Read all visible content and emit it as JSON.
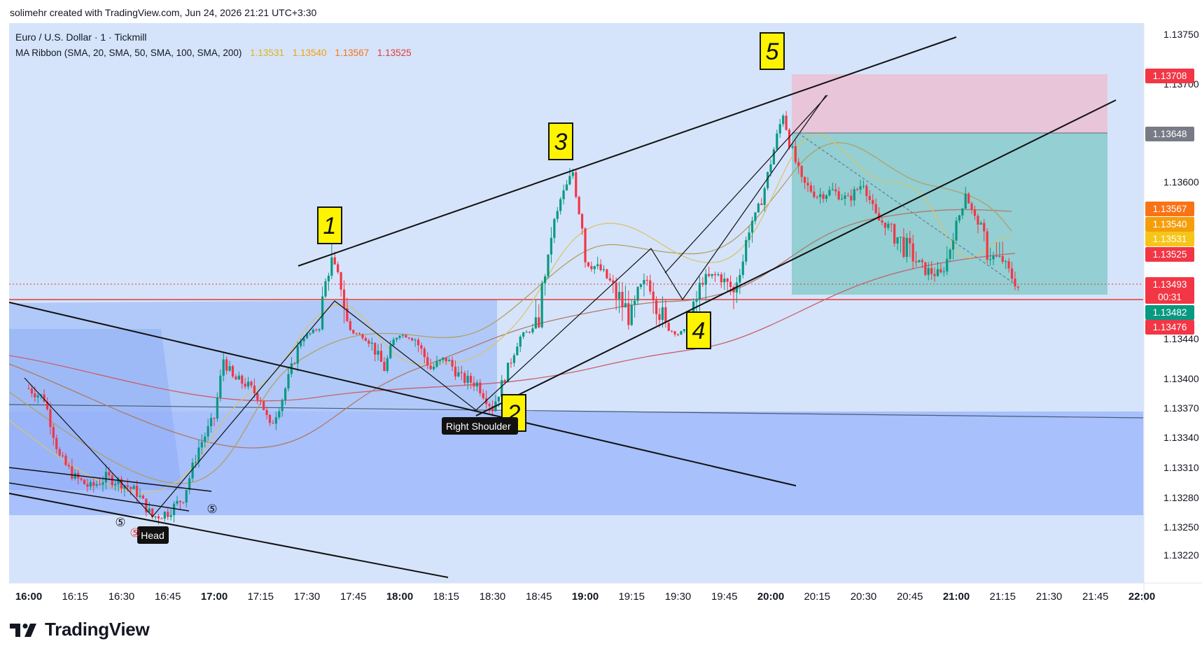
{
  "header": {
    "caption": "solimehr created with TradingView.com, Jun 24, 2026 21:21 UTC+3:30"
  },
  "legend": {
    "symbol": "Euro / U.S. Dollar · 1 · Tickmill",
    "indicator": "MA Ribbon (SMA, 20, SMA, 50, SMA, 100, SMA, 200)",
    "values": [
      {
        "text": "1.13531",
        "color": "#f5c518"
      },
      {
        "text": "1.13540",
        "color": "#f59e0b"
      },
      {
        "text": "1.13567",
        "color": "#f97316"
      },
      {
        "text": "1.13525",
        "color": "#e53935"
      }
    ]
  },
  "brand": {
    "name": "TradingView"
  },
  "chart_data": {
    "type": "candlestick",
    "instrument": "EURUSD",
    "timeframe": "1",
    "y_axis": {
      "range": [
        1.132,
        1.1377
      ],
      "ticks": [
        "1.13220",
        "1.13250",
        "1.13280",
        "1.13310",
        "1.13340",
        "1.13370",
        "1.13400",
        "1.13440",
        "1.13600",
        "1.13700",
        "1.13750"
      ]
    },
    "x_axis": {
      "range": [
        "16:00",
        "22:00"
      ],
      "ticks": [
        {
          "label": "16:00",
          "bold": true
        },
        {
          "label": "16:15"
        },
        {
          "label": "16:30"
        },
        {
          "label": "16:45"
        },
        {
          "label": "17:00",
          "bold": true
        },
        {
          "label": "17:15"
        },
        {
          "label": "17:30"
        },
        {
          "label": "17:45"
        },
        {
          "label": "18:00",
          "bold": true
        },
        {
          "label": "18:15"
        },
        {
          "label": "18:30"
        },
        {
          "label": "18:45"
        },
        {
          "label": "19:00",
          "bold": true
        },
        {
          "label": "19:15"
        },
        {
          "label": "19:30"
        },
        {
          "label": "19:45"
        },
        {
          "label": "20:00",
          "bold": true
        },
        {
          "label": "20:15"
        },
        {
          "label": "20:30"
        },
        {
          "label": "20:45"
        },
        {
          "label": "21:00",
          "bold": true
        },
        {
          "label": "21:15"
        },
        {
          "label": "21:30"
        },
        {
          "label": "21:45"
        },
        {
          "label": "22:00",
          "bold": true
        }
      ]
    },
    "price_path": [
      [
        "16:00",
        1.1339
      ],
      [
        "16:05",
        1.1338
      ],
      [
        "16:10",
        1.1332
      ],
      [
        "16:15",
        1.133
      ],
      [
        "16:20",
        1.1329
      ],
      [
        "16:25",
        1.133
      ],
      [
        "16:30",
        1.13295
      ],
      [
        "16:35",
        1.13285
      ],
      [
        "16:40",
        1.1326
      ],
      [
        "16:45",
        1.13265
      ],
      [
        "16:50",
        1.1328
      ],
      [
        "16:55",
        1.1333
      ],
      [
        "17:00",
        1.1336
      ],
      [
        "17:03",
        1.1342
      ],
      [
        "17:06",
        1.134
      ],
      [
        "17:10",
        1.13395
      ],
      [
        "17:15",
        1.1338
      ],
      [
        "17:18",
        1.1335
      ],
      [
        "17:22",
        1.1338
      ],
      [
        "17:28",
        1.1344
      ],
      [
        "17:34",
        1.13475
      ],
      [
        "17:38",
        1.1352
      ],
      [
        "17:41",
        1.13495
      ],
      [
        "17:45",
        1.1346
      ],
      [
        "17:50",
        1.1344
      ],
      [
        "17:55",
        1.1341
      ],
      [
        "18:00",
        1.13455
      ],
      [
        "18:05",
        1.1344
      ],
      [
        "18:10",
        1.1341
      ],
      [
        "18:15",
        1.1342
      ],
      [
        "18:20",
        1.134
      ],
      [
        "18:25",
        1.13395
      ],
      [
        "18:30",
        1.1337
      ],
      [
        "18:35",
        1.1341
      ],
      [
        "18:40",
        1.13455
      ],
      [
        "18:45",
        1.1348
      ],
      [
        "18:48",
        1.1352
      ],
      [
        "18:52",
        1.1358
      ],
      [
        "18:56",
        1.1361
      ],
      [
        "19:00",
        1.1352
      ],
      [
        "19:05",
        1.1351
      ],
      [
        "19:10",
        1.1349
      ],
      [
        "19:15",
        1.1348
      ],
      [
        "19:20",
        1.135
      ],
      [
        "19:25",
        1.1348
      ],
      [
        "19:30",
        1.13455
      ],
      [
        "19:33",
        1.1347
      ],
      [
        "19:38",
        1.135
      ],
      [
        "19:43",
        1.13505
      ],
      [
        "19:48",
        1.1349
      ],
      [
        "19:52",
        1.1353
      ],
      [
        "19:57",
        1.1358
      ],
      [
        "20:00",
        1.1362
      ],
      [
        "20:04",
        1.1367
      ],
      [
        "20:06",
        1.1364
      ],
      [
        "20:10",
        1.136
      ],
      [
        "20:15",
        1.13585
      ],
      [
        "20:20",
        1.1359
      ],
      [
        "20:25",
        1.1358
      ],
      [
        "20:30",
        1.136
      ],
      [
        "20:35",
        1.1355
      ],
      [
        "20:40",
        1.13535
      ],
      [
        "20:45",
        1.13525
      ],
      [
        "20:50",
        1.1351
      ],
      [
        "20:55",
        1.13505
      ],
      [
        "21:00",
        1.13545
      ],
      [
        "21:03",
        1.1359
      ],
      [
        "21:06",
        1.13555
      ],
      [
        "21:10",
        1.13525
      ],
      [
        "21:15",
        1.1352
      ],
      [
        "21:18",
        1.13503
      ],
      [
        "21:20",
        1.13493
      ]
    ],
    "ma_ribbon": {
      "periods": [
        20,
        50,
        100,
        200
      ],
      "current": [
        1.13531,
        1.1354,
        1.13567,
        1.13525
      ]
    },
    "price_labels": [
      {
        "text": "1.13708",
        "color": "#f23645"
      },
      {
        "text": "1.13648",
        "color": "#787b86"
      },
      {
        "text": "1.13567",
        "color": "#f97316"
      },
      {
        "text": "1.13540",
        "color": "#f59e0b"
      },
      {
        "text": "1.13531",
        "color": "#f5c518"
      },
      {
        "text": "1.13525",
        "color": "#f23645"
      },
      {
        "text": "1.13493",
        "color": "#f23645",
        "sub": "00:31"
      },
      {
        "text": "1.13482",
        "color": "#089981"
      },
      {
        "text": "1.13476",
        "color": "#f23645"
      }
    ],
    "annotations": [
      {
        "text": "1"
      },
      {
        "text": "2"
      },
      {
        "text": "3"
      },
      {
        "text": "4"
      },
      {
        "text": "5"
      },
      {
        "text": "Right Shoulder"
      },
      {
        "text": "Head"
      }
    ],
    "small_markers": [
      "⑤",
      "⑤",
      "⑤"
    ],
    "position": {
      "side": "short",
      "stop": 1.13708,
      "entry": 1.13648,
      "target": 1.13476
    },
    "zones": {
      "demand_top": 1.13476,
      "lower_zone_top": 1.1337,
      "lower_zone_bottom": 1.13255
    }
  }
}
